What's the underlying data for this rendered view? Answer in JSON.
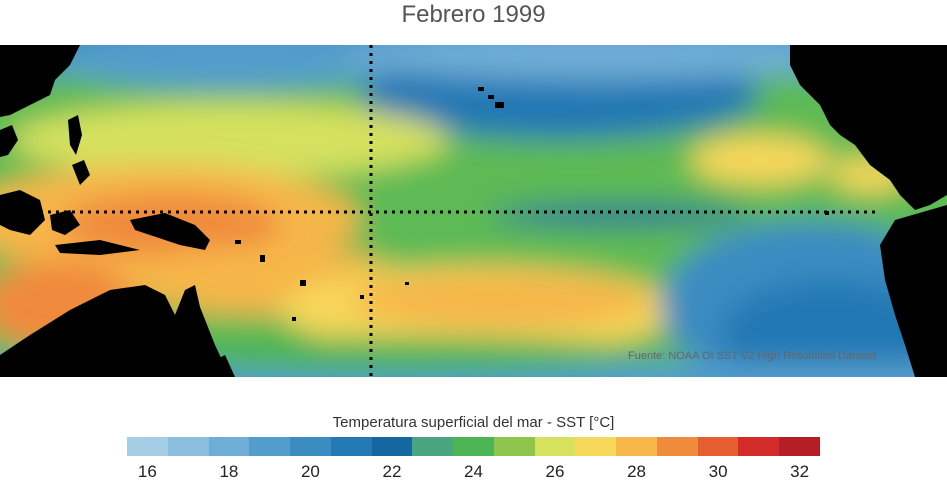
{
  "title": "Febrero 1999",
  "source": "Fuente: NOAA OI SST V2 High Resolution Dataset",
  "colorbar": {
    "label": "Temperatura superficial del mar - SST  [°C]",
    "ticks": [
      "16",
      "18",
      "20",
      "22",
      "24",
      "26",
      "28",
      "30",
      "32"
    ],
    "colors": [
      "#a6cde6",
      "#8bbedf",
      "#6eaed6",
      "#529dcc",
      "#3a8cc1",
      "#2478b4",
      "#14689f",
      "#4aa47f",
      "#4cb454",
      "#8dc54d",
      "#d6e15e",
      "#f7d85a",
      "#f6b64a",
      "#f08a3c",
      "#e55e30",
      "#d32a2a",
      "#b41f26"
    ]
  }
}
